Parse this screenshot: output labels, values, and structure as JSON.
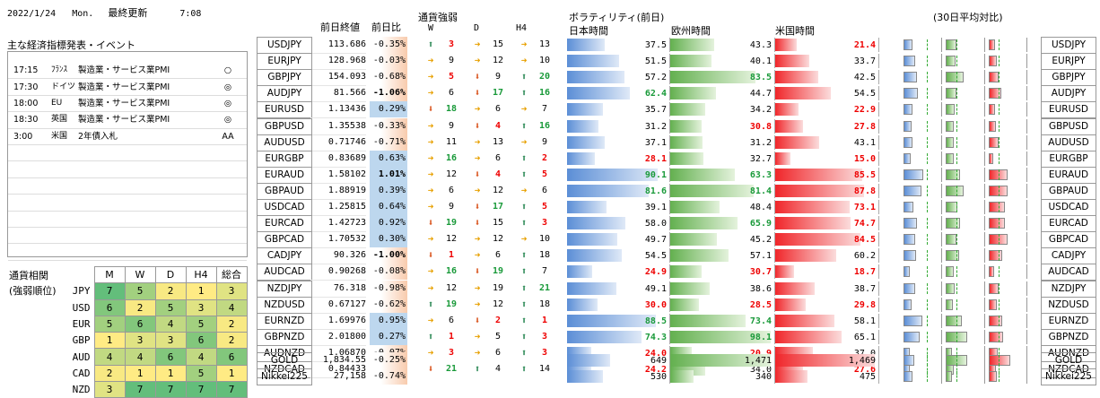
{
  "header": {
    "date": "2022/1/24",
    "weekday": "Mon.",
    "last_update_label": "最終更新",
    "time": "7:08"
  },
  "events": {
    "title": "主な経済指標発表・イベント",
    "rows": [
      {
        "time": "17:15",
        "country": "ﾌﾗﾝｽ",
        "event": "製造業・サービス業PMI",
        "mark": "○"
      },
      {
        "time": "17:30",
        "country": "ドイツ",
        "event": "製造業・サービス業PMI",
        "mark": "◎"
      },
      {
        "time": "18:00",
        "country": "EU",
        "event": "製造業・サービス業PMI",
        "mark": "◎"
      },
      {
        "time": "18:30",
        "country": "英国",
        "event": "製造業・サービス業PMI",
        "mark": "◎"
      },
      {
        "time": "3:00",
        "country": "米国",
        "event": "2年債入札",
        "mark": "AA"
      },
      {
        "time": "",
        "country": "",
        "event": "",
        "mark": ""
      },
      {
        "time": "",
        "country": "",
        "event": "",
        "mark": ""
      },
      {
        "time": "",
        "country": "",
        "event": "",
        "mark": ""
      },
      {
        "time": "",
        "country": "",
        "event": "",
        "mark": ""
      },
      {
        "time": "",
        "country": "",
        "event": "",
        "mark": ""
      },
      {
        "time": "",
        "country": "",
        "event": "",
        "mark": ""
      },
      {
        "time": "",
        "country": "",
        "event": "",
        "mark": ""
      }
    ]
  },
  "columns": {
    "prev_close": "前日終値",
    "prev_change": "前日比",
    "strength_title": "通貨強弱",
    "w": "W",
    "d": "D",
    "h4": "H4",
    "volatility_title": "ボラティリティ(前日)",
    "avg_title": "(30日平均対比)",
    "japan": "日本時間",
    "europe": "欧州時間",
    "us": "米国時間"
  },
  "pairs": [
    {
      "name": "USDJPY",
      "close": "113.686",
      "chg": "-0.35%",
      "neg": true,
      "bold": false,
      "w": [
        "u",
        "3"
      ],
      "d": [
        "r",
        "15"
      ],
      "h4": [
        "r",
        "13"
      ],
      "jp": "37.5",
      "eu": "43.3",
      "us": "21.4",
      "jpv": 37.5,
      "euv": 43.3,
      "usv": 21.4,
      "wc": "red",
      "dc": "",
      "hc": ""
    },
    {
      "name": "EURJPY",
      "close": "128.968",
      "chg": "-0.03%",
      "neg": true,
      "bold": false,
      "w": [
        "r",
        "9"
      ],
      "d": [
        "r",
        "12"
      ],
      "h4": [
        "r",
        "10"
      ],
      "jp": "51.5",
      "eu": "40.1",
      "us": "33.7",
      "jpv": 51.5,
      "euv": 40.1,
      "usv": 33.7,
      "wc": "",
      "dc": "",
      "hc": ""
    },
    {
      "name": "GBPJPY",
      "close": "154.093",
      "chg": "-0.68%",
      "neg": true,
      "bold": false,
      "w": [
        "r",
        "5"
      ],
      "d": [
        "d",
        "9"
      ],
      "h4": [
        "u",
        "20"
      ],
      "jp": "57.2",
      "eu": "83.5",
      "us": "42.5",
      "jpv": 57.2,
      "euv": 83.5,
      "usv": 42.5,
      "wc": "red",
      "dc": "",
      "hc": "grn"
    },
    {
      "name": "AUDJPY",
      "close": "81.566",
      "chg": "-1.06%",
      "neg": true,
      "bold": true,
      "w": [
        "r",
        "6"
      ],
      "d": [
        "d",
        "17"
      ],
      "h4": [
        "u",
        "16"
      ],
      "jp": "62.4",
      "eu": "44.7",
      "us": "54.5",
      "jpv": 62.4,
      "euv": 44.7,
      "usv": 54.5,
      "wc": "",
      "dc": "grn",
      "hc": "grn"
    },
    {
      "name": "EURUSD",
      "close": "1.13436",
      "chg": "0.29%",
      "neg": false,
      "bold": false,
      "w": [
        "d",
        "18"
      ],
      "d": [
        "r",
        "6"
      ],
      "h4": [
        "r",
        "7"
      ],
      "jp": "35.7",
      "eu": "34.2",
      "us": "22.9",
      "jpv": 35.7,
      "euv": 34.2,
      "usv": 22.9,
      "wc": "grn",
      "dc": "",
      "hc": ""
    },
    {
      "name": "GBPUSD",
      "close": "1.35538",
      "chg": "-0.33%",
      "neg": true,
      "bold": false,
      "w": [
        "r",
        "9"
      ],
      "d": [
        "d",
        "4"
      ],
      "h4": [
        "u",
        "16"
      ],
      "jp": "31.2",
      "eu": "30.8",
      "us": "27.8",
      "jpv": 31.2,
      "euv": 30.8,
      "usv": 27.8,
      "wc": "",
      "dc": "red",
      "hc": "grn"
    },
    {
      "name": "AUDUSD",
      "close": "0.71746",
      "chg": "-0.71%",
      "neg": true,
      "bold": false,
      "w": [
        "r",
        "11"
      ],
      "d": [
        "r",
        "13"
      ],
      "h4": [
        "r",
        "9"
      ],
      "jp": "37.1",
      "eu": "31.2",
      "us": "43.1",
      "jpv": 37.1,
      "euv": 31.2,
      "usv": 43.1,
      "wc": "",
      "dc": "",
      "hc": ""
    },
    {
      "name": "EURGBP",
      "close": "0.83689",
      "chg": "0.63%",
      "neg": false,
      "bold": false,
      "w": [
        "r",
        "16"
      ],
      "d": [
        "r",
        "6"
      ],
      "h4": [
        "u",
        "2"
      ],
      "jp": "28.1",
      "eu": "32.7",
      "us": "15.0",
      "jpv": 28.1,
      "euv": 32.7,
      "usv": 15.0,
      "wc": "grn",
      "dc": "",
      "hc": "red"
    },
    {
      "name": "EURAUD",
      "close": "1.58102",
      "chg": "1.01%",
      "neg": false,
      "bold": true,
      "w": [
        "r",
        "12"
      ],
      "d": [
        "d",
        "4"
      ],
      "h4": [
        "u",
        "5"
      ],
      "jp": "90.1",
      "eu": "63.3",
      "us": "85.5",
      "jpv": 90.1,
      "euv": 63.3,
      "usv": 85.5,
      "wc": "",
      "dc": "red",
      "hc": "red"
    },
    {
      "name": "GBPAUD",
      "close": "1.88919",
      "chg": "0.39%",
      "neg": false,
      "bold": false,
      "w": [
        "r",
        "6"
      ],
      "d": [
        "r",
        "12"
      ],
      "h4": [
        "r",
        "6"
      ],
      "jp": "81.6",
      "eu": "81.4",
      "us": "87.8",
      "jpv": 81.6,
      "euv": 81.4,
      "usv": 87.8,
      "wc": "",
      "dc": "",
      "hc": ""
    },
    {
      "name": "USDCAD",
      "close": "1.25815",
      "chg": "0.64%",
      "neg": false,
      "bold": false,
      "w": [
        "r",
        "9"
      ],
      "d": [
        "d",
        "17"
      ],
      "h4": [
        "u",
        "5"
      ],
      "jp": "39.1",
      "eu": "48.4",
      "us": "73.1",
      "jpv": 39.1,
      "euv": 48.4,
      "usv": 73.1,
      "wc": "",
      "dc": "grn",
      "hc": "red"
    },
    {
      "name": "EURCAD",
      "close": "1.42723",
      "chg": "0.92%",
      "neg": false,
      "bold": false,
      "w": [
        "d",
        "19"
      ],
      "d": [
        "d",
        "15"
      ],
      "h4": [
        "u",
        "3"
      ],
      "jp": "58.0",
      "eu": "65.9",
      "us": "74.7",
      "jpv": 58.0,
      "euv": 65.9,
      "usv": 74.7,
      "wc": "grn",
      "dc": "",
      "hc": "red"
    },
    {
      "name": "GBPCAD",
      "close": "1.70532",
      "chg": "0.30%",
      "neg": false,
      "bold": false,
      "w": [
        "r",
        "12"
      ],
      "d": [
        "r",
        "12"
      ],
      "h4": [
        "r",
        "10"
      ],
      "jp": "49.7",
      "eu": "45.2",
      "us": "84.5",
      "jpv": 49.7,
      "euv": 45.2,
      "usv": 84.5,
      "wc": "",
      "dc": "",
      "hc": ""
    },
    {
      "name": "CADJPY",
      "close": "90.326",
      "chg": "-1.00%",
      "neg": true,
      "bold": true,
      "w": [
        "d",
        "1"
      ],
      "d": [
        "r",
        "6"
      ],
      "h4": [
        "u",
        "18"
      ],
      "jp": "54.5",
      "eu": "57.1",
      "us": "60.2",
      "jpv": 54.5,
      "euv": 57.1,
      "usv": 60.2,
      "wc": "red",
      "dc": "",
      "hc": ""
    },
    {
      "name": "AUDCAD",
      "close": "0.90268",
      "chg": "-0.08%",
      "neg": true,
      "bold": false,
      "w": [
        "r",
        "16"
      ],
      "d": [
        "d",
        "19"
      ],
      "h4": [
        "u",
        "7"
      ],
      "jp": "24.9",
      "eu": "30.7",
      "us": "18.7",
      "jpv": 24.9,
      "euv": 30.7,
      "usv": 18.7,
      "wc": "grn",
      "dc": "grn",
      "hc": ""
    },
    {
      "name": "NZDJPY",
      "close": "76.318",
      "chg": "-0.98%",
      "neg": true,
      "bold": false,
      "w": [
        "r",
        "12"
      ],
      "d": [
        "r",
        "19"
      ],
      "h4": [
        "u",
        "21"
      ],
      "jp": "49.1",
      "eu": "38.6",
      "us": "38.7",
      "jpv": 49.1,
      "euv": 38.6,
      "usv": 38.7,
      "wc": "",
      "dc": "",
      "hc": "grn"
    },
    {
      "name": "NZDUSD",
      "close": "0.67127",
      "chg": "-0.62%",
      "neg": true,
      "bold": false,
      "w": [
        "u",
        "19"
      ],
      "d": [
        "r",
        "12"
      ],
      "h4": [
        "u",
        "18"
      ],
      "jp": "30.0",
      "eu": "28.5",
      "us": "29.8",
      "jpv": 30.0,
      "euv": 28.5,
      "usv": 29.8,
      "wc": "grn",
      "dc": "",
      "hc": ""
    },
    {
      "name": "EURNZD",
      "close": "1.69976",
      "chg": "0.95%",
      "neg": false,
      "bold": false,
      "w": [
        "r",
        "6"
      ],
      "d": [
        "d",
        "2"
      ],
      "h4": [
        "u",
        "1"
      ],
      "jp": "88.5",
      "eu": "73.4",
      "us": "58.1",
      "jpv": 88.5,
      "euv": 73.4,
      "usv": 58.1,
      "wc": "",
      "dc": "red",
      "hc": "red"
    },
    {
      "name": "GBPNZD",
      "close": "2.01800",
      "chg": "0.27%",
      "neg": false,
      "bold": false,
      "w": [
        "u",
        "1"
      ],
      "d": [
        "r",
        "5"
      ],
      "h4": [
        "u",
        "3"
      ],
      "jp": "74.3",
      "eu": "98.1",
      "us": "65.1",
      "jpv": 74.3,
      "euv": 98.1,
      "usv": 65.1,
      "wc": "red",
      "dc": "",
      "hc": "red"
    },
    {
      "name": "AUDNZD",
      "close": "1.06870",
      "chg": "-0.07%",
      "neg": true,
      "bold": false,
      "w": [
        "r",
        "3"
      ],
      "d": [
        "r",
        "6"
      ],
      "h4": [
        "u",
        "3"
      ],
      "jp": "24.0",
      "eu": "20.9",
      "us": "37.0",
      "jpv": 24.0,
      "euv": 20.9,
      "usv": 37.0,
      "wc": "red",
      "dc": "",
      "hc": "red"
    },
    {
      "name": "NZDCAD",
      "close": "0.84433",
      "chg": "-0.03%",
      "neg": true,
      "bold": false,
      "w": [
        "d",
        "21"
      ],
      "d": [
        "u",
        "4"
      ],
      "h4": [
        "u",
        "14"
      ],
      "jp": "24.2",
      "eu": "34.0",
      "us": "27.6",
      "jpv": 24.2,
      "euv": 34.0,
      "usv": 27.6,
      "wc": "grn",
      "dc": "",
      "hc": ""
    }
  ],
  "extras": [
    {
      "name": "GOLD",
      "close": "1,834.55",
      "chg": "-0.25%",
      "jp": "649",
      "eu": "1,471",
      "us": "1,469",
      "jpv": 649,
      "euv": 1471,
      "usv": 1469
    },
    {
      "name": "Nikkei225",
      "close": "27,158",
      "chg": "-0.74%",
      "jp": "530",
      "eu": "340",
      "us": "475",
      "jpv": 530,
      "euv": 340,
      "usv": 475
    }
  ],
  "correlation": {
    "title1": "通貨相関",
    "title2": "(強弱順位)",
    "headers": [
      "M",
      "W",
      "D",
      "H4",
      "総合"
    ],
    "rows": [
      {
        "cur": "JPY",
        "vals": [
          "7",
          "5",
          "2",
          "1",
          "3"
        ]
      },
      {
        "cur": "USD",
        "vals": [
          "6",
          "2",
          "5",
          "3",
          "4"
        ]
      },
      {
        "cur": "EUR",
        "vals": [
          "5",
          "6",
          "4",
          "5",
          "2"
        ]
      },
      {
        "cur": "GBP",
        "vals": [
          "1",
          "3",
          "3",
          "6",
          "2"
        ]
      },
      {
        "cur": "AUD",
        "vals": [
          "4",
          "4",
          "6",
          "4",
          "6"
        ]
      },
      {
        "cur": "CAD",
        "vals": [
          "2",
          "1",
          "1",
          "5",
          "1"
        ]
      },
      {
        "cur": "NZD",
        "vals": [
          "3",
          "7",
          "7",
          "7",
          "7"
        ]
      }
    ]
  }
}
